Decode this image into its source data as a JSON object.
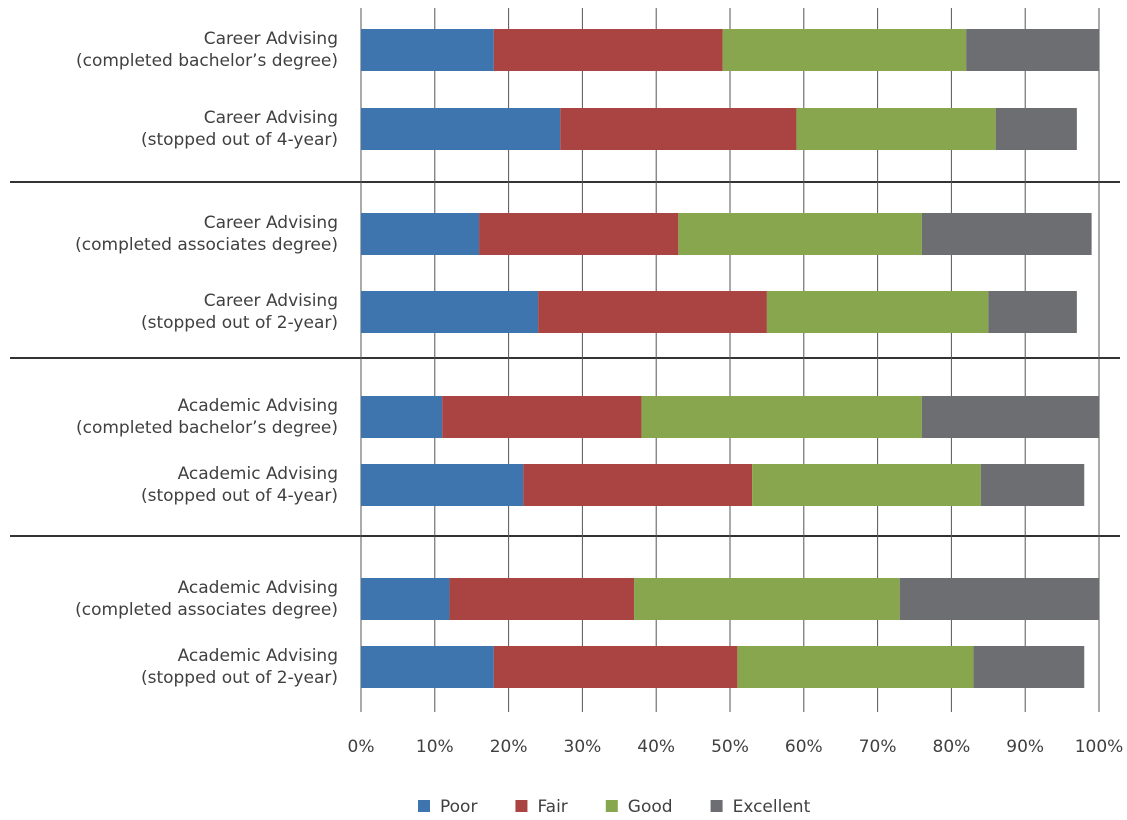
{
  "chart_data": {
    "type": "stacked-barh",
    "categories": [
      "Career Advising\n(completed bachelor’s degree)",
      "Career Advising\n(stopped out of 4-year)",
      "Career Advising\n(completed associates degree)",
      "Career Advising\n(stopped out of 2-year)",
      "Academic Advising\n(completed bachelor’s degree)",
      "Academic Advising\n(stopped out of 4-year)",
      "Academic Advising\n(completed associates degree)",
      "Academic Advising\n(stopped out of 2-year)"
    ],
    "series": [
      {
        "name": "Poor",
        "color": "#3e75ae",
        "values": [
          18,
          27,
          16,
          24,
          11,
          22,
          12,
          18
        ]
      },
      {
        "name": "Fair",
        "color": "#a94442",
        "values": [
          31,
          32,
          27,
          31,
          27,
          31,
          25,
          33
        ]
      },
      {
        "name": "Good",
        "color": "#88a64d",
        "values": [
          33,
          27,
          33,
          30,
          38,
          31,
          36,
          32
        ]
      },
      {
        "name": "Excellent",
        "color": "#6d6e71",
        "values": [
          18,
          11,
          23,
          12,
          24,
          14,
          27,
          15
        ]
      }
    ],
    "xlim": [
      0,
      100
    ],
    "xticks": [
      {
        "value": 0,
        "label": "0%"
      },
      {
        "value": 10,
        "label": "10%"
      },
      {
        "value": 20,
        "label": "20%"
      },
      {
        "value": 30,
        "label": "30%"
      },
      {
        "value": 40,
        "label": "40%"
      },
      {
        "value": 50,
        "label": "50%"
      },
      {
        "value": 60,
        "label": "60%"
      },
      {
        "value": 70,
        "label": "70%"
      },
      {
        "value": 80,
        "label": "80%"
      },
      {
        "value": 90,
        "label": "90%"
      },
      {
        "value": 100,
        "label": "100%"
      }
    ],
    "grid": true,
    "legend": "bottom"
  }
}
